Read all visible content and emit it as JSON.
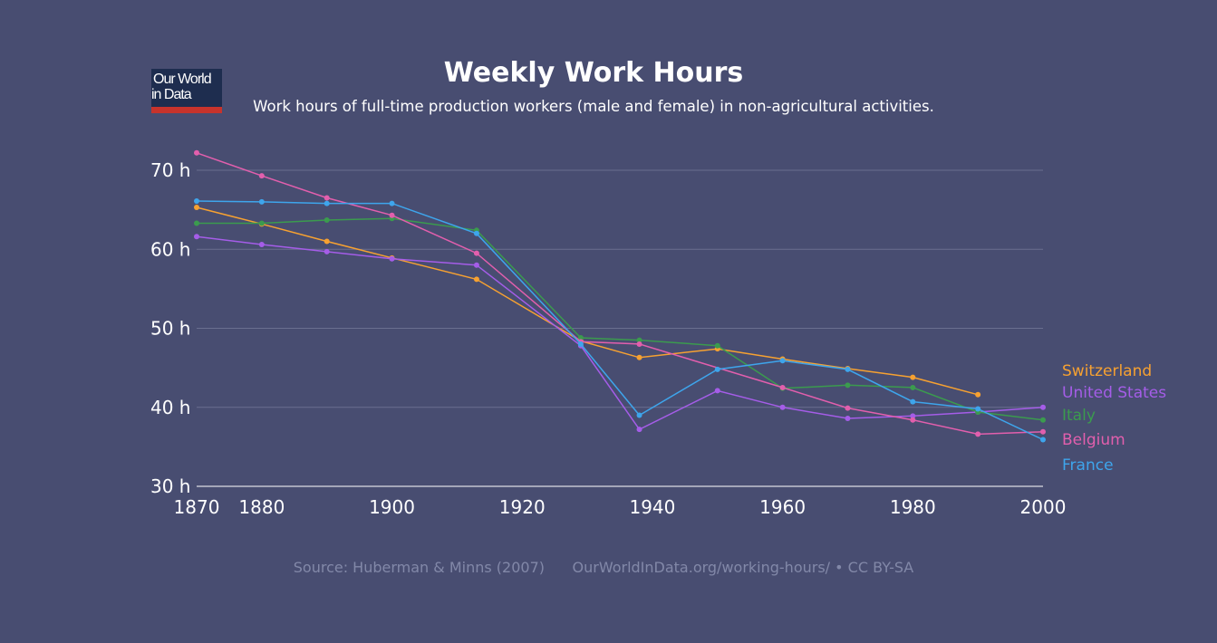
{
  "logo": {
    "line1": "Our World",
    "line2": "in Data"
  },
  "header": {
    "title": "Weekly Work Hours",
    "subtitle": "Work hours of full-time production workers (male and female) in non-agricultural activities."
  },
  "footer": {
    "source": "Source: Huberman & Minns (2007)",
    "attribution": "OurWorldInData.org/working-hours/ • CC BY-SA"
  },
  "colors": {
    "background": "#484d71",
    "gridline": "#6a6f90",
    "axis": "#ffffff"
  },
  "chart_data": {
    "type": "line",
    "title": "Weekly Work Hours",
    "subtitle": "Work hours of full-time production workers (male and female) in non-agricultural activities.",
    "xlabel": "",
    "ylabel": "",
    "xlim": [
      1870,
      2000
    ],
    "ylim": [
      30,
      70
    ],
    "x_ticks": [
      {
        "value": 1870,
        "label": "1870"
      },
      {
        "value": 1880,
        "label": "1880"
      },
      {
        "value": 1900,
        "label": "1900"
      },
      {
        "value": 1920,
        "label": "1920"
      },
      {
        "value": 1940,
        "label": "1940"
      },
      {
        "value": 1960,
        "label": "1960"
      },
      {
        "value": 1980,
        "label": "1980"
      },
      {
        "value": 2000,
        "label": "2000"
      }
    ],
    "y_ticks": [
      {
        "value": 30,
        "label": "30 h"
      },
      {
        "value": 40,
        "label": "40 h"
      },
      {
        "value": 50,
        "label": "50 h"
      },
      {
        "value": 60,
        "label": "60 h"
      },
      {
        "value": 70,
        "label": "70 h"
      }
    ],
    "grid": true,
    "legend_placement": "right",
    "series": [
      {
        "name": "Switzerland",
        "color": "#f6a131",
        "points": [
          [
            1870,
            65.3
          ],
          [
            1880,
            63.2
          ],
          [
            1890,
            61.0
          ],
          [
            1900,
            58.9
          ],
          [
            1913,
            56.2
          ],
          [
            1929,
            48.4
          ],
          [
            1938,
            46.3
          ],
          [
            1950,
            47.4
          ],
          [
            1960,
            46.1
          ],
          [
            1970,
            44.9
          ],
          [
            1980,
            43.8
          ],
          [
            1990,
            41.6
          ]
        ]
      },
      {
        "name": "United States",
        "color": "#a55de8",
        "points": [
          [
            1870,
            61.6
          ],
          [
            1880,
            60.6
          ],
          [
            1890,
            59.7
          ],
          [
            1900,
            58.8
          ],
          [
            1913,
            58.0
          ],
          [
            1929,
            47.8
          ],
          [
            1938,
            37.2
          ],
          [
            1950,
            42.1
          ],
          [
            1960,
            40.0
          ],
          [
            1970,
            38.6
          ],
          [
            1980,
            38.9
          ],
          [
            1990,
            39.4
          ],
          [
            2000,
            40.0
          ]
        ]
      },
      {
        "name": "Italy",
        "color": "#3b9b4e",
        "points": [
          [
            1870,
            63.3
          ],
          [
            1880,
            63.3
          ],
          [
            1890,
            63.7
          ],
          [
            1900,
            63.9
          ],
          [
            1913,
            62.4
          ],
          [
            1929,
            48.8
          ],
          [
            1938,
            48.5
          ],
          [
            1950,
            47.8
          ],
          [
            1960,
            42.4
          ],
          [
            1970,
            42.8
          ],
          [
            1980,
            42.5
          ],
          [
            1990,
            39.4
          ],
          [
            2000,
            38.4
          ]
        ]
      },
      {
        "name": "Belgium",
        "color": "#e25fad",
        "points": [
          [
            1870,
            72.2
          ],
          [
            1880,
            69.3
          ],
          [
            1890,
            66.5
          ],
          [
            1900,
            64.3
          ],
          [
            1913,
            59.5
          ],
          [
            1929,
            48.3
          ],
          [
            1938,
            48.0
          ],
          [
            1960,
            42.5
          ],
          [
            1970,
            39.9
          ],
          [
            1980,
            38.4
          ],
          [
            1990,
            36.6
          ],
          [
            2000,
            36.9
          ]
        ]
      },
      {
        "name": "France",
        "color": "#3ea5ec",
        "points": [
          [
            1870,
            66.1
          ],
          [
            1880,
            66.0
          ],
          [
            1890,
            65.8
          ],
          [
            1900,
            65.8
          ],
          [
            1913,
            62.0
          ],
          [
            1929,
            48.0
          ],
          [
            1938,
            39.0
          ],
          [
            1950,
            44.8
          ],
          [
            1960,
            45.9
          ],
          [
            1970,
            44.8
          ],
          [
            1980,
            40.7
          ],
          [
            1990,
            39.8
          ],
          [
            2000,
            35.9
          ]
        ]
      }
    ]
  }
}
